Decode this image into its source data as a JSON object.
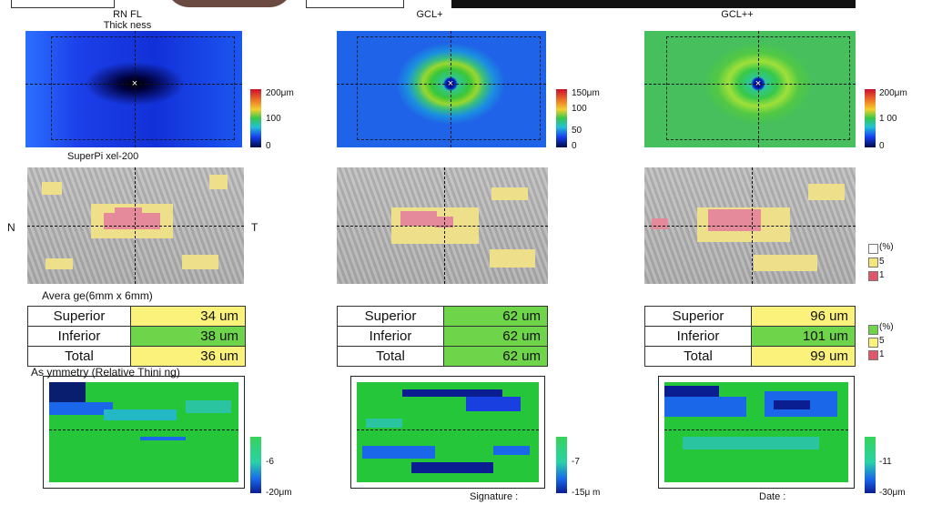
{
  "columns": [
    {
      "title_line1": "RN FL",
      "title_line2": "Thick ness",
      "map_subtitle": "SuperPi xel-200"
    },
    {
      "title_line1": "GCL+",
      "title_line2": ""
    },
    {
      "title_line1": "GCL++",
      "title_line2": ""
    }
  ],
  "scales": {
    "rnfl": [
      "200μm",
      "100",
      "0"
    ],
    "gcl": [
      "150μm",
      "100",
      "50",
      "0"
    ],
    "gclpp": [
      "200μm",
      "1 00",
      "0"
    ]
  },
  "orientation": {
    "nasal": "N",
    "temporal": "T"
  },
  "deviation_legend": [
    "(%)",
    "5",
    "1"
  ],
  "average_heading": "Avera ge(6mm x 6mm)",
  "tables": [
    {
      "rows": [
        {
          "label": "Superior",
          "value": "34 um",
          "color": "yellow"
        },
        {
          "label": "Inferior",
          "value": "38 um",
          "color": "green"
        },
        {
          "label": "Total",
          "value": "36 um",
          "color": "yellow"
        }
      ]
    },
    {
      "rows": [
        {
          "label": "Superior",
          "value": "62 um",
          "color": "green"
        },
        {
          "label": "Inferior",
          "value": "62 um",
          "color": "green"
        },
        {
          "label": "Total",
          "value": "62 um",
          "color": "green"
        }
      ]
    },
    {
      "rows": [
        {
          "label": "Superior",
          "value": "96 um",
          "color": "yellow"
        },
        {
          "label": "Inferior",
          "value": "101 um",
          "color": "green"
        },
        {
          "label": "Total",
          "value": "99 um",
          "color": "yellow"
        }
      ]
    }
  ],
  "table_legend": [
    "(%)",
    "5",
    "1"
  ],
  "asymmetry_heading": "As ymmetry (Relative Thini ng)",
  "asym_scales": [
    [
      "-6",
      "-20μm"
    ],
    [
      "-7",
      "-15μ m"
    ],
    [
      "-11",
      "-30μm"
    ]
  ],
  "footer": {
    "signature": "Signature :",
    "date": "Date :"
  },
  "colors": {
    "yellow": "#fbf27b",
    "green": "#6ed449",
    "red": "#e58a9a"
  }
}
